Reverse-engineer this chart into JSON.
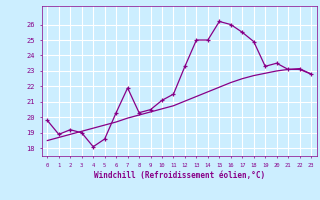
{
  "xlabel": "Windchill (Refroidissement éolien,°C)",
  "xlim": [
    -0.5,
    23.5
  ],
  "ylim": [
    17.5,
    27.2
  ],
  "yticks": [
    18,
    19,
    20,
    21,
    22,
    23,
    24,
    25,
    26
  ],
  "xticks": [
    0,
    1,
    2,
    3,
    4,
    5,
    6,
    7,
    8,
    9,
    10,
    11,
    12,
    13,
    14,
    15,
    16,
    17,
    18,
    19,
    20,
    21,
    22,
    23
  ],
  "background_color": "#cceeff",
  "grid_color": "#ffffff",
  "line_color": "#880088",
  "line1_x": [
    0,
    1,
    2,
    3,
    4,
    5,
    6,
    7,
    8,
    9,
    10,
    11,
    12,
    13,
    14,
    15,
    16,
    17,
    18,
    19,
    20,
    21,
    22,
    23
  ],
  "line1_y": [
    19.8,
    18.9,
    19.2,
    19.0,
    18.1,
    18.6,
    20.3,
    21.9,
    20.3,
    20.5,
    21.1,
    21.5,
    23.3,
    25.0,
    25.0,
    26.2,
    26.0,
    25.5,
    24.9,
    23.3,
    23.5,
    23.1,
    23.1,
    22.8
  ],
  "line2_x": [
    0,
    1,
    2,
    3,
    4,
    5,
    6,
    7,
    8,
    9,
    10,
    11,
    12,
    13,
    14,
    15,
    16,
    17,
    18,
    19,
    20,
    21,
    22,
    23
  ],
  "line2_y": [
    18.5,
    18.7,
    18.9,
    19.1,
    19.3,
    19.5,
    19.7,
    19.95,
    20.15,
    20.35,
    20.55,
    20.75,
    21.05,
    21.35,
    21.65,
    21.95,
    22.25,
    22.5,
    22.7,
    22.85,
    23.0,
    23.1,
    23.15,
    22.8
  ]
}
